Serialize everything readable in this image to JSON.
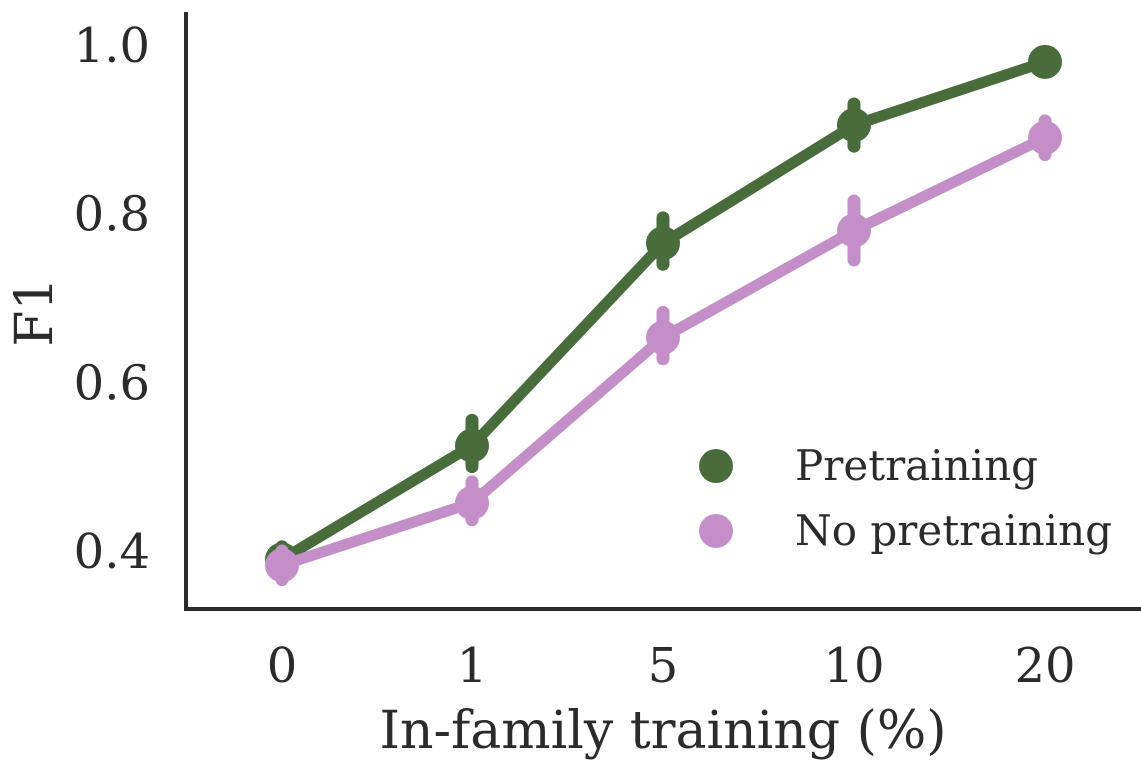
{
  "chart_data": {
    "type": "line",
    "title": "",
    "xlabel": "In-family training (%)",
    "ylabel": "F1",
    "categories": [
      "0",
      "1",
      "5",
      "10",
      "20"
    ],
    "yticks": [
      "0.4",
      "0.6",
      "0.8",
      "1.0"
    ],
    "ytick_values": [
      0.4,
      0.6,
      0.8,
      1.0
    ],
    "ylim": [
      0.33,
      1.03
    ],
    "legend_position": "bottom-right",
    "series": [
      {
        "name": "Pretraining",
        "color": "#486c3c",
        "values": [
          0.39,
          0.525,
          0.765,
          0.905,
          0.98
        ],
        "err_low": [
          0.375,
          0.5,
          0.74,
          0.88,
          0.98
        ],
        "err_high": [
          0.405,
          0.555,
          0.795,
          0.93,
          0.98
        ]
      },
      {
        "name": "No pretraining",
        "color": "#c48fc8",
        "values": [
          0.383,
          0.457,
          0.653,
          0.78,
          0.89
        ],
        "err_low": [
          0.366,
          0.437,
          0.628,
          0.745,
          0.87
        ],
        "err_high": [
          0.4,
          0.482,
          0.683,
          0.815,
          0.91
        ]
      }
    ]
  }
}
